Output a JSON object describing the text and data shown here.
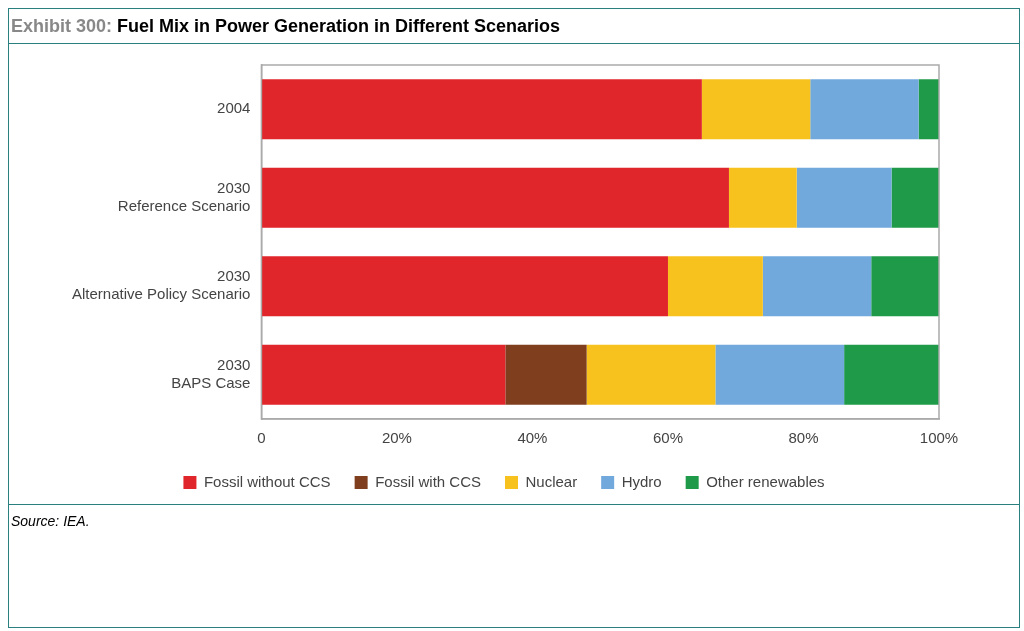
{
  "chart_data": {
    "type": "bar",
    "orientation": "horizontal",
    "stacked": true,
    "title": "Exhibit 300: Fuel Mix in Power Generation in Different Scenarios",
    "categories": [
      "2004",
      "2030\nReference Scenario",
      "2030\nAlternative Policy Scenario",
      "2030\nBAPS Case"
    ],
    "series": [
      {
        "name": "Fossil without CCS",
        "color": "#e0262a",
        "values": [
          65,
          69,
          60,
          36
        ]
      },
      {
        "name": "Fossil with CCS",
        "color": "#7f3f1f",
        "values": [
          0,
          0,
          0,
          12
        ]
      },
      {
        "name": "Nuclear",
        "color": "#f7c21e",
        "values": [
          16,
          10,
          14,
          19
        ]
      },
      {
        "name": "Hydro",
        "color": "#71a9dc",
        "values": [
          16,
          14,
          16,
          19
        ]
      },
      {
        "name": "Other renewables",
        "color": "#1f9a48",
        "values": [
          3,
          7,
          10,
          14
        ]
      }
    ],
    "xlim": [
      0,
      100
    ],
    "xticks": [
      0,
      {
        "value": 20,
        "label": "20%"
      },
      {
        "value": 40,
        "label": "40%"
      },
      {
        "value": 60,
        "label": "60%"
      },
      {
        "value": 80,
        "label": "80%"
      },
      {
        "value": 100,
        "label": "100%"
      }
    ],
    "legend": "bottom",
    "grid": false,
    "annotations": [
      "Source: IEA."
    ]
  }
}
